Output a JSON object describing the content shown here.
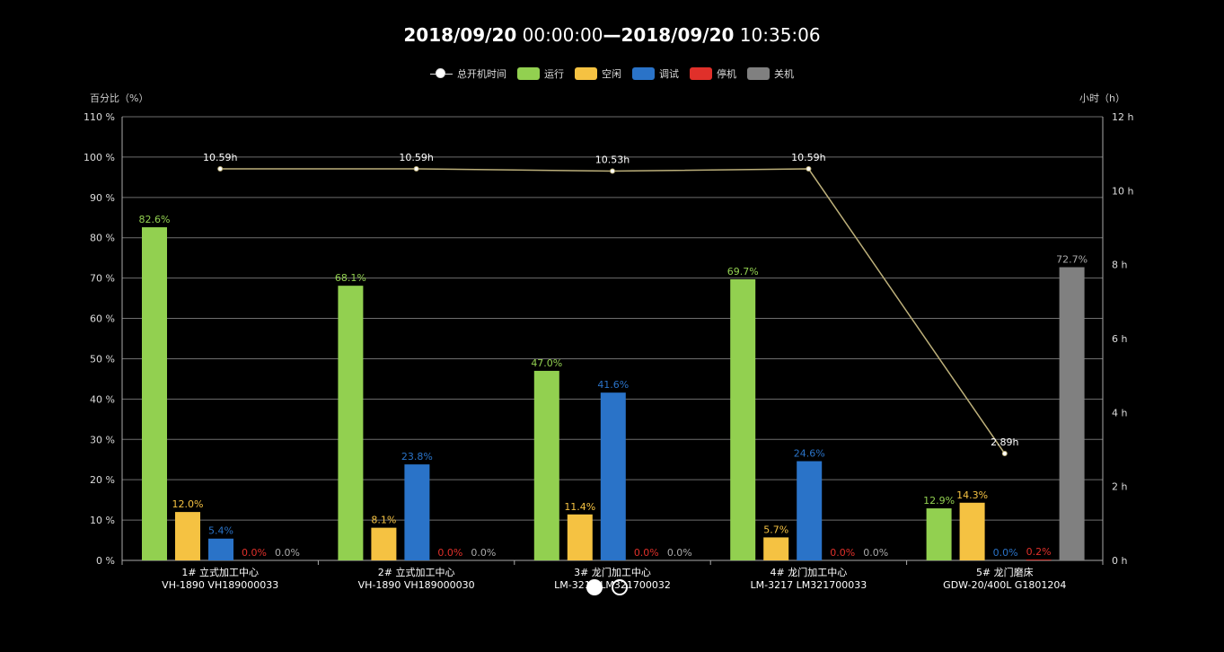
{
  "title": {
    "start_date": "2018/09/20",
    "start_time": "00:00:00",
    "separator": "—",
    "end_date": "2018/09/20",
    "end_time": "10:35:06"
  },
  "legend": {
    "line": "总开机时间",
    "items": [
      {
        "label": "运行",
        "color": "#92d050"
      },
      {
        "label": "空闲",
        "color": "#f5c242"
      },
      {
        "label": "调试",
        "color": "#2a73c8"
      },
      {
        "label": "停机",
        "color": "#e0302a"
      },
      {
        "label": "关机",
        "color": "#808080"
      }
    ]
  },
  "pager": {
    "active": 1,
    "count": 2
  },
  "chart_data": {
    "type": "bar",
    "ylabel_left": "百分比（%）",
    "ylabel_right": "小时（h）",
    "y_left": {
      "min": 0,
      "max": 110,
      "step": 10,
      "unit": " %"
    },
    "y_right": {
      "min": 0,
      "max": 12,
      "step": 2,
      "unit": " h"
    },
    "categories": [
      {
        "name": "1# 立式加工中心",
        "model": "VH-1890 VH189000033"
      },
      {
        "name": "2# 立式加工中心",
        "model": "VH-1890 VH189000030"
      },
      {
        "name": "3# 龙门加工中心",
        "model": "LM-3217 LM321700032"
      },
      {
        "name": "4# 龙门加工中心",
        "model": "LM-3217 LM321700033"
      },
      {
        "name": "5# 龙门磨床",
        "model": "GDW-20/400L G1801204"
      }
    ],
    "series": [
      {
        "name": "运行",
        "color": "#92d050",
        "values": [
          82.6,
          68.1,
          47.0,
          69.7,
          12.9
        ],
        "labels": [
          "82.6%",
          "68.1%",
          "47.0%",
          "69.7%",
          "12.9%"
        ]
      },
      {
        "name": "空闲",
        "color": "#f5c242",
        "values": [
          12.0,
          8.1,
          11.4,
          5.7,
          14.3
        ],
        "labels": [
          "12.0%",
          "8.1%",
          "11.4%",
          "5.7%",
          "14.3%"
        ]
      },
      {
        "name": "调试",
        "color": "#2a73c8",
        "values": [
          5.4,
          23.8,
          41.6,
          24.6,
          0.0
        ],
        "labels": [
          "5.4%",
          "23.8%",
          "41.6%",
          "24.6%",
          "0.0%"
        ]
      },
      {
        "name": "停机",
        "color": "#e0302a",
        "values": [
          0.0,
          0.0,
          0.0,
          0.0,
          0.2
        ],
        "labels": [
          "0.0%",
          "0.0%",
          "0.0%",
          "0.0%",
          "0.2%"
        ]
      },
      {
        "name": "关机",
        "color": "#808080",
        "values": [
          0.0,
          0.0,
          0.0,
          0.0,
          72.7
        ],
        "labels": [
          "0.0%",
          "0.0%",
          "0.0%",
          "0.0%",
          "72.7%"
        ]
      }
    ],
    "line": {
      "name": "总开机时间",
      "color": "#bdb07a",
      "values": [
        10.59,
        10.59,
        10.53,
        10.59,
        2.89
      ],
      "labels": [
        "10.59h",
        "10.59h",
        "10.53h",
        "10.59h",
        "2.89h"
      ]
    },
    "grid": true,
    "legend_position": "top-center"
  }
}
